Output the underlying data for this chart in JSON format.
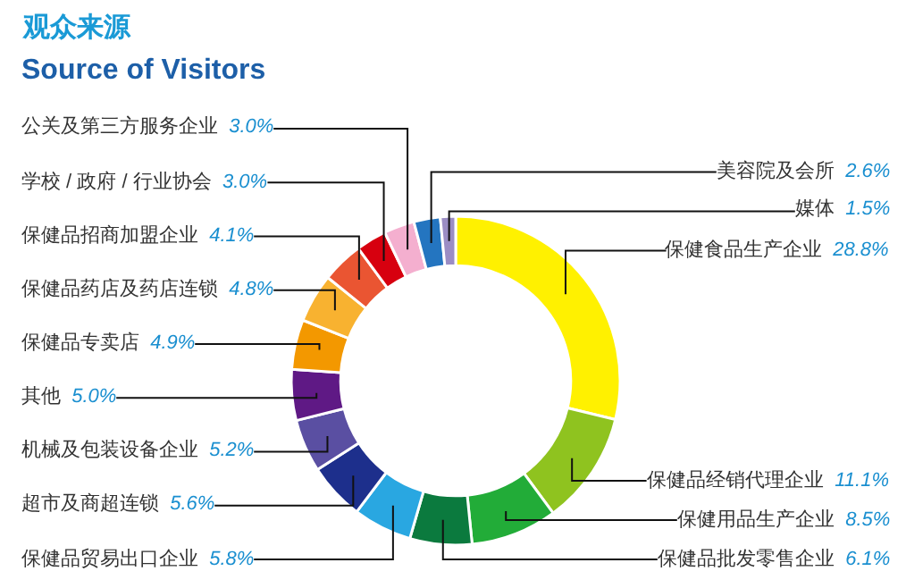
{
  "chart_data": {
    "type": "donut",
    "title": "观众来源",
    "subtitle": "Source of Visitors",
    "categories": [
      "保健食品生产企业",
      "保健品经销代理企业",
      "保健用品生产企业",
      "保健品批发零售企业",
      "保健品贸易出口企业",
      "超市及商超连锁",
      "机械及包装设备企业",
      "其他",
      "保健品专卖店",
      "保健品药店及药店连锁",
      "保健品招商加盟企业",
      "学校 / 政府 / 行业协会",
      "公关及第三方服务企业",
      "美容院及会所",
      "媒体"
    ],
    "values": [
      28.8,
      11.1,
      8.5,
      6.1,
      5.8,
      5.6,
      5.2,
      5.0,
      4.9,
      4.8,
      4.1,
      3.0,
      3.0,
      2.6,
      1.5
    ],
    "value_labels": [
      "28.8%",
      "11.1%",
      "8.5%",
      "6.1%",
      "5.8%",
      "5.6%",
      "5.2%",
      "5.0%",
      "4.9%",
      "4.8%",
      "4.1%",
      "3.0%",
      "3.0%",
      "2.6%",
      "1.5%"
    ],
    "colors": [
      "#fff100",
      "#8fc31f",
      "#22ac38",
      "#0b7a3e",
      "#29a7e1",
      "#1d2f8c",
      "#5a4fa2",
      "#5f1985",
      "#f39800",
      "#f8b230",
      "#ea5532",
      "#d7000f",
      "#f4afcf",
      "#2475c0",
      "#9b8dc4"
    ],
    "legend": false
  }
}
